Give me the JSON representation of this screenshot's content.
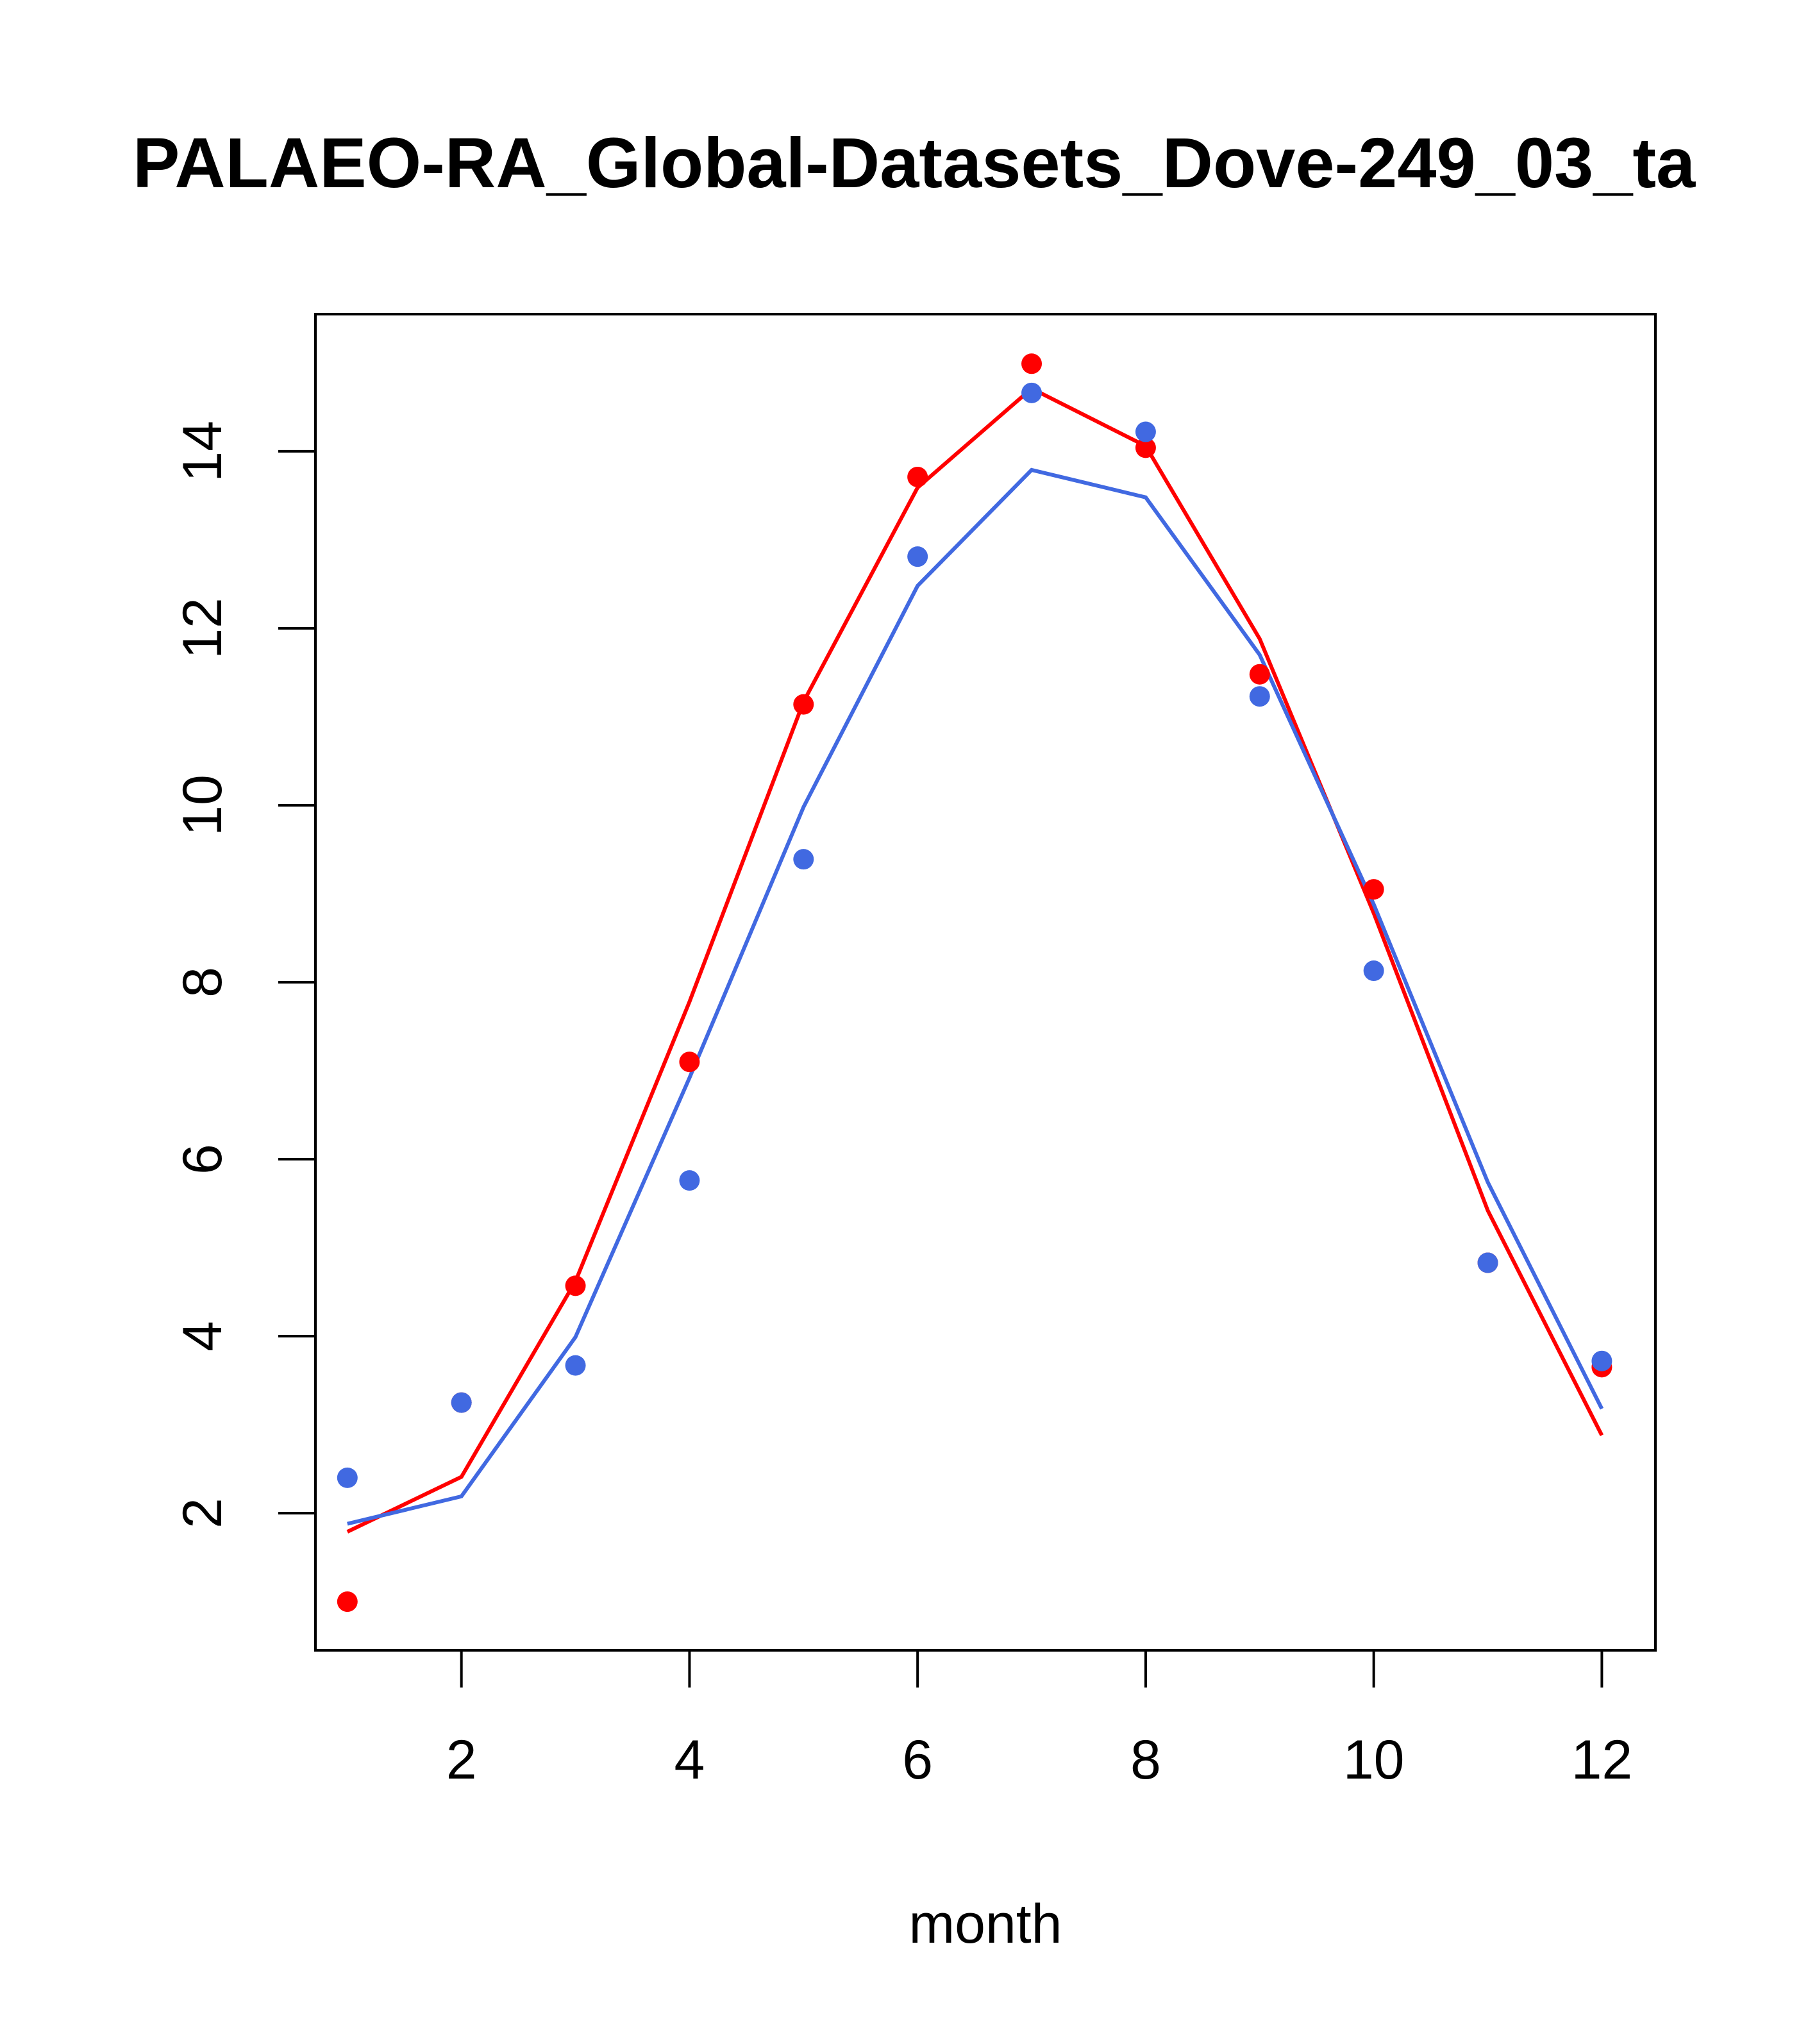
{
  "chart_data": {
    "type": "line",
    "title": "PALAEO-RA_Global-Datasets_Dove-249_03_ta",
    "xlabel": "month",
    "ylabel": "",
    "xlim": [
      0.72,
      12.47
    ],
    "ylim": [
      0.45,
      15.55
    ],
    "x_ticks": [
      2,
      4,
      6,
      8,
      10,
      12
    ],
    "y_ticks": [
      2,
      4,
      6,
      8,
      10,
      12,
      14
    ],
    "x": [
      1,
      2,
      3,
      4,
      5,
      6,
      7,
      8,
      9,
      10,
      11,
      12
    ],
    "series": [
      {
        "name": "red points",
        "kind": "points",
        "color": "#ff0000",
        "values": [
          1.0,
          3.25,
          4.57,
          7.1,
          11.14,
          13.71,
          14.99,
          14.04,
          11.48,
          9.05,
          4.83,
          3.65
        ]
      },
      {
        "name": "blue points",
        "kind": "points",
        "color": "#4169e1",
        "values": [
          2.4,
          3.25,
          3.67,
          5.76,
          9.39,
          12.81,
          14.66,
          14.22,
          11.23,
          8.13,
          4.83,
          3.72
        ]
      },
      {
        "name": "red line",
        "kind": "line",
        "color": "#ff0000",
        "values": [
          1.79,
          2.41,
          4.62,
          7.78,
          11.17,
          13.59,
          14.71,
          14.06,
          11.88,
          8.78,
          5.42,
          2.88
        ]
      },
      {
        "name": "blue line",
        "kind": "line",
        "color": "#4169e1",
        "values": [
          1.88,
          2.19,
          3.99,
          6.92,
          9.98,
          12.48,
          13.79,
          13.48,
          11.7,
          8.88,
          5.74,
          3.18
        ]
      }
    ]
  }
}
